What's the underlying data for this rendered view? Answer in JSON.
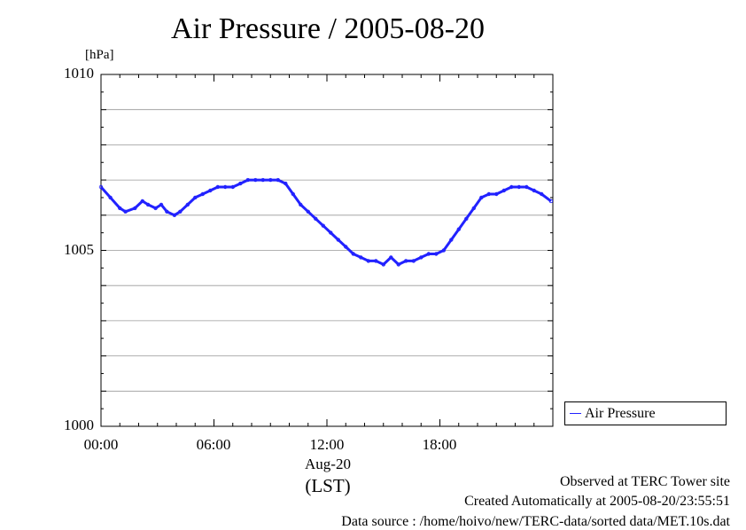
{
  "chart_data": {
    "type": "line",
    "title": "Air Pressure / 2005-08-20",
    "ylabel": "[hPa]",
    "ylim": [
      1000,
      1010
    ],
    "y_ticks": [
      "1000",
      "1005",
      "1010"
    ],
    "xlim": [
      0,
      24
    ],
    "x_ticks": [
      {
        "value": 0,
        "label": "00:00"
      },
      {
        "value": 6,
        "label": "06:00"
      },
      {
        "value": 12,
        "label": "12:00"
      },
      {
        "value": 18,
        "label": "18:00"
      }
    ],
    "date_label": "Aug-20",
    "timezone_label": "(LST)",
    "grid": true,
    "legend_position": "right-bottom",
    "series": [
      {
        "name": "Air Pressure",
        "color": "#2222ff",
        "x": [
          0.0,
          0.5,
          1.0,
          1.3,
          1.8,
          2.2,
          2.5,
          2.9,
          3.2,
          3.5,
          3.9,
          4.2,
          4.6,
          5.0,
          5.4,
          5.8,
          6.2,
          6.6,
          7.0,
          7.4,
          7.8,
          8.2,
          8.6,
          9.0,
          9.4,
          9.8,
          10.2,
          10.6,
          11.0,
          11.4,
          11.8,
          12.2,
          12.6,
          13.0,
          13.4,
          13.8,
          14.2,
          14.6,
          15.0,
          15.4,
          15.8,
          16.2,
          16.6,
          17.0,
          17.4,
          17.8,
          18.2,
          18.6,
          19.0,
          19.4,
          19.8,
          20.2,
          20.6,
          21.0,
          21.4,
          21.8,
          22.2,
          22.6,
          23.0,
          23.4,
          23.9
        ],
        "values": [
          1006.8,
          1006.5,
          1006.2,
          1006.1,
          1006.2,
          1006.4,
          1006.3,
          1006.2,
          1006.3,
          1006.1,
          1006.0,
          1006.1,
          1006.3,
          1006.5,
          1006.6,
          1006.7,
          1006.8,
          1006.8,
          1006.8,
          1006.9,
          1007.0,
          1007.0,
          1007.0,
          1007.0,
          1007.0,
          1006.9,
          1006.6,
          1006.3,
          1006.1,
          1005.9,
          1005.7,
          1005.5,
          1005.3,
          1005.1,
          1004.9,
          1004.8,
          1004.7,
          1004.7,
          1004.6,
          1004.8,
          1004.6,
          1004.7,
          1004.7,
          1004.8,
          1004.9,
          1004.9,
          1005.0,
          1005.3,
          1005.6,
          1005.9,
          1006.2,
          1006.5,
          1006.6,
          1006.6,
          1006.7,
          1006.8,
          1006.8,
          1006.8,
          1006.7,
          1006.6,
          1006.4
        ]
      }
    ]
  },
  "footer": {
    "line1": "Observed at TERC Tower site",
    "line2": "Created Automatically at 2005-08-20/23:55:51",
    "line3": "Data source : /home/hoivo/new/TERC-data/sorted  data/MET.10s.dat"
  }
}
